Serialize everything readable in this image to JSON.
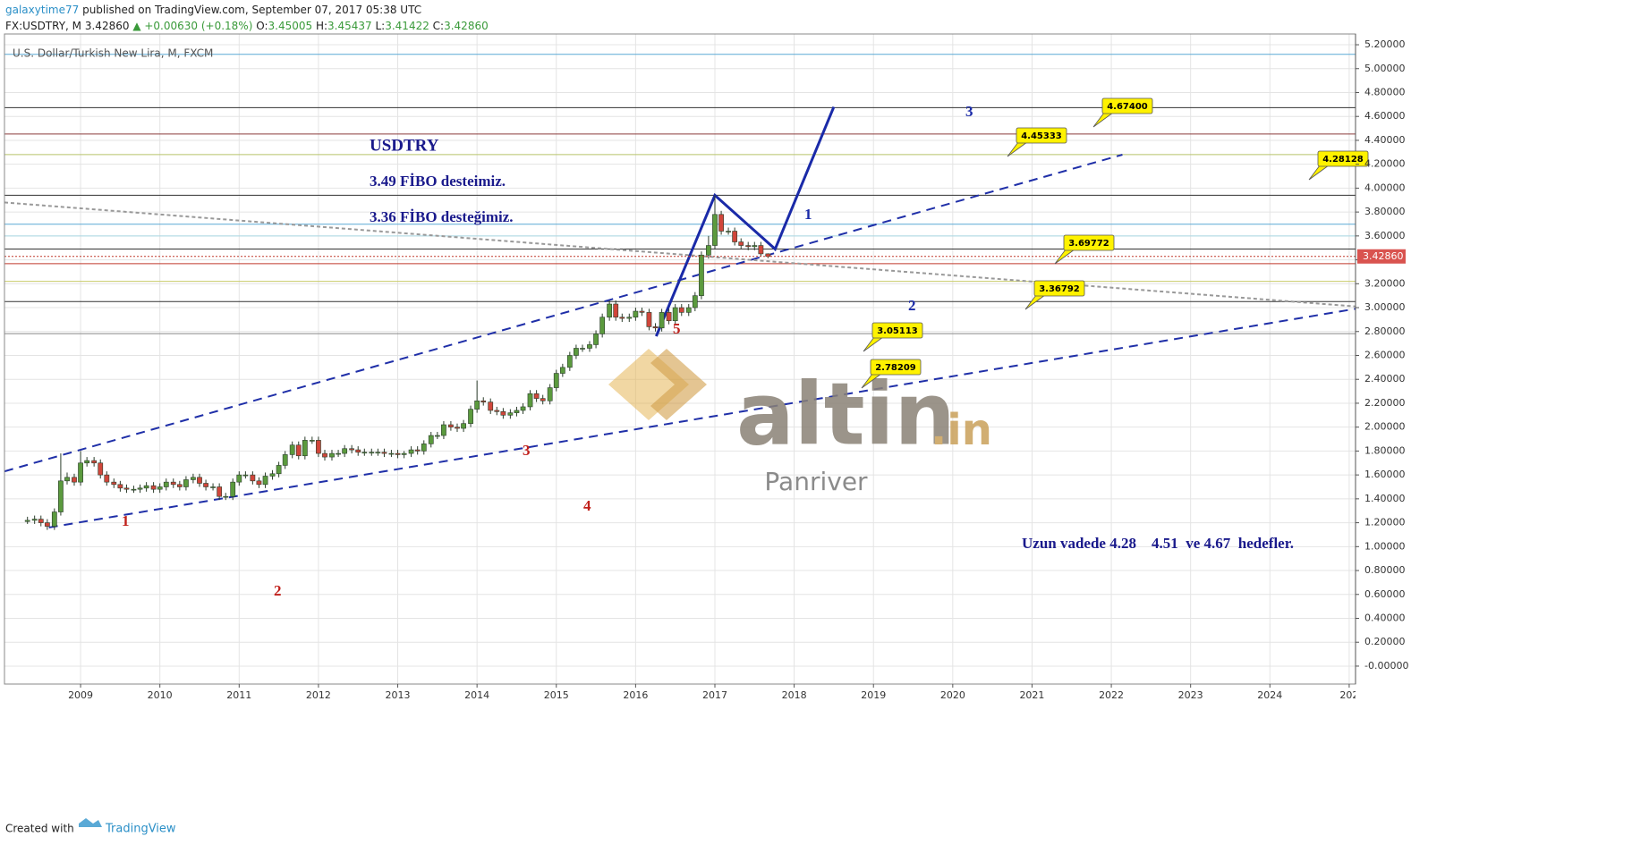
{
  "header": {
    "author": "galaxytime77",
    "published": "published on TradingView.com, September 07, 2017 05:38 UTC",
    "symbol": "FX:USDTRY, M",
    "last": "3.42860",
    "change": "▲ +0.00630 (+0.18%)",
    "open_label": "O:",
    "open": "3.45005",
    "high_label": "H:",
    "high": "3.45437",
    "low_label": "L:",
    "low": "3.41422",
    "close_label": "C:",
    "close": "3.42860"
  },
  "chart_data": {
    "type": "candlestick",
    "title": "U.S. Dollar/Turkish New Lira, M, FXCM",
    "up_color": "#5b9a3e",
    "down_color": "#d0463b",
    "grid": true,
    "x": [
      2008.33,
      2008.42,
      2008.5,
      2008.58,
      2008.67,
      2008.75,
      2008.83,
      2008.92,
      2009,
      2009.08,
      2009.17,
      2009.25,
      2009.33,
      2009.42,
      2009.5,
      2009.58,
      2009.67,
      2009.75,
      2009.83,
      2009.92,
      2010,
      2010.08,
      2010.17,
      2010.25,
      2010.33,
      2010.42,
      2010.5,
      2010.58,
      2010.67,
      2010.75,
      2010.83,
      2010.92,
      2011,
      2011.08,
      2011.17,
      2011.25,
      2011.33,
      2011.42,
      2011.5,
      2011.58,
      2011.67,
      2011.75,
      2011.83,
      2011.92,
      2012,
      2012.08,
      2012.17,
      2012.25,
      2012.33,
      2012.42,
      2012.5,
      2012.58,
      2012.67,
      2012.75,
      2012.83,
      2012.92,
      2013,
      2013.08,
      2013.17,
      2013.25,
      2013.33,
      2013.42,
      2013.5,
      2013.58,
      2013.67,
      2013.75,
      2013.83,
      2013.92,
      2014,
      2014.08,
      2014.17,
      2014.25,
      2014.33,
      2014.42,
      2014.5,
      2014.58,
      2014.67,
      2014.75,
      2014.83,
      2014.92,
      2015,
      2015.08,
      2015.17,
      2015.25,
      2015.33,
      2015.42,
      2015.5,
      2015.58,
      2015.67,
      2015.75,
      2015.83,
      2015.92,
      2016,
      2016.08,
      2016.17,
      2016.25,
      2016.33,
      2016.42,
      2016.5,
      2016.58,
      2016.67,
      2016.75,
      2016.83,
      2016.92,
      2017,
      2017.08,
      2017.17,
      2017.25,
      2017.33,
      2017.42,
      2017.5,
      2017.58,
      2017.67
    ],
    "open": [
      1.21,
      1.22,
      1.23,
      1.2,
      1.17,
      1.29,
      1.55,
      1.58,
      1.54,
      1.7,
      1.72,
      1.7,
      1.6,
      1.54,
      1.52,
      1.49,
      1.48,
      1.48,
      1.49,
      1.51,
      1.48,
      1.5,
      1.54,
      1.52,
      1.5,
      1.56,
      1.58,
      1.53,
      1.5,
      1.5,
      1.42,
      1.42,
      1.54,
      1.6,
      1.6,
      1.55,
      1.52,
      1.59,
      1.61,
      1.68,
      1.77,
      1.85,
      1.76,
      1.89,
      1.89,
      1.78,
      1.75,
      1.78,
      1.78,
      1.82,
      1.81,
      1.79,
      1.79,
      1.79,
      1.79,
      1.78,
      1.78,
      1.77,
      1.78,
      1.81,
      1.8,
      1.86,
      1.93,
      1.93,
      2.02,
      2.0,
      1.99,
      2.03,
      2.15,
      2.22,
      2.21,
      2.14,
      2.13,
      2.1,
      2.12,
      2.14,
      2.17,
      2.28,
      2.24,
      2.22,
      2.33,
      2.45,
      2.5,
      2.6,
      2.66,
      2.66,
      2.69,
      2.78,
      2.92,
      3.03,
      2.92,
      2.91,
      2.92,
      2.97,
      2.96,
      2.84,
      2.83,
      2.96,
      2.89,
      3.0,
      2.96,
      3.0,
      3.1,
      3.44,
      3.52,
      3.78,
      3.64,
      3.64,
      3.55,
      3.52,
      3.51,
      3.52,
      3.45005
    ],
    "high": [
      1.25,
      1.26,
      1.26,
      1.23,
      1.32,
      1.78,
      1.62,
      1.61,
      1.8,
      1.75,
      1.75,
      1.73,
      1.63,
      1.57,
      1.55,
      1.52,
      1.51,
      1.52,
      1.54,
      1.54,
      1.53,
      1.57,
      1.57,
      1.55,
      1.59,
      1.61,
      1.61,
      1.56,
      1.53,
      1.53,
      1.45,
      1.57,
      1.63,
      1.63,
      1.63,
      1.58,
      1.62,
      1.64,
      1.71,
      1.8,
      1.88,
      1.88,
      1.92,
      1.92,
      1.92,
      1.81,
      1.81,
      1.81,
      1.85,
      1.85,
      1.84,
      1.82,
      1.82,
      1.82,
      1.82,
      1.81,
      1.81,
      1.8,
      1.84,
      1.84,
      1.89,
      1.96,
      1.96,
      2.05,
      2.05,
      2.03,
      2.06,
      2.18,
      2.39,
      2.25,
      2.24,
      2.17,
      2.16,
      2.15,
      2.17,
      2.2,
      2.31,
      2.31,
      2.27,
      2.36,
      2.48,
      2.53,
      2.63,
      2.69,
      2.69,
      2.72,
      2.81,
      2.95,
      3.06,
      3.06,
      2.95,
      2.95,
      3.0,
      3.0,
      2.99,
      2.87,
      2.99,
      2.99,
      3.03,
      3.03,
      3.03,
      3.13,
      3.47,
      3.6,
      3.94,
      3.81,
      3.67,
      3.67,
      3.58,
      3.55,
      3.55,
      3.55,
      3.45437
    ],
    "low": [
      1.19,
      1.19,
      1.17,
      1.14,
      1.14,
      1.26,
      1.52,
      1.51,
      1.51,
      1.67,
      1.67,
      1.57,
      1.51,
      1.49,
      1.46,
      1.45,
      1.45,
      1.45,
      1.46,
      1.45,
      1.45,
      1.47,
      1.49,
      1.47,
      1.47,
      1.53,
      1.5,
      1.47,
      1.47,
      1.39,
      1.39,
      1.39,
      1.51,
      1.57,
      1.52,
      1.49,
      1.49,
      1.56,
      1.58,
      1.65,
      1.74,
      1.73,
      1.73,
      1.86,
      1.75,
      1.72,
      1.72,
      1.75,
      1.75,
      1.78,
      1.76,
      1.76,
      1.76,
      1.76,
      1.75,
      1.75,
      1.74,
      1.74,
      1.75,
      1.77,
      1.77,
      1.83,
      1.9,
      1.9,
      1.97,
      1.96,
      1.96,
      2.0,
      2.12,
      2.18,
      2.11,
      2.1,
      2.07,
      2.07,
      2.09,
      2.11,
      2.14,
      2.21,
      2.19,
      2.19,
      2.3,
      2.42,
      2.47,
      2.57,
      2.63,
      2.63,
      2.66,
      2.75,
      2.89,
      2.89,
      2.88,
      2.88,
      2.89,
      2.93,
      2.81,
      2.8,
      2.8,
      2.86,
      2.86,
      2.93,
      2.93,
      2.97,
      3.07,
      3.41,
      3.49,
      3.61,
      3.61,
      3.52,
      3.49,
      3.48,
      3.48,
      3.43,
      3.41422
    ],
    "close": [
      1.22,
      1.23,
      1.2,
      1.17,
      1.29,
      1.55,
      1.58,
      1.54,
      1.7,
      1.72,
      1.7,
      1.6,
      1.54,
      1.52,
      1.49,
      1.48,
      1.48,
      1.49,
      1.51,
      1.48,
      1.5,
      1.54,
      1.52,
      1.5,
      1.56,
      1.58,
      1.53,
      1.5,
      1.5,
      1.42,
      1.42,
      1.54,
      1.6,
      1.6,
      1.55,
      1.52,
      1.59,
      1.61,
      1.68,
      1.77,
      1.85,
      1.76,
      1.89,
      1.89,
      1.78,
      1.75,
      1.78,
      1.78,
      1.82,
      1.81,
      1.79,
      1.79,
      1.79,
      1.79,
      1.78,
      1.78,
      1.77,
      1.78,
      1.81,
      1.8,
      1.86,
      1.93,
      1.93,
      2.02,
      2.0,
      1.99,
      2.03,
      2.15,
      2.22,
      2.21,
      2.14,
      2.13,
      2.1,
      2.12,
      2.14,
      2.17,
      2.28,
      2.24,
      2.22,
      2.33,
      2.45,
      2.5,
      2.6,
      2.66,
      2.66,
      2.69,
      2.78,
      2.92,
      3.03,
      2.92,
      2.91,
      2.92,
      2.97,
      2.96,
      2.84,
      2.83,
      2.96,
      2.89,
      3.0,
      2.96,
      3.0,
      3.1,
      3.44,
      3.52,
      3.78,
      3.64,
      3.64,
      3.55,
      3.52,
      3.51,
      3.52,
      3.45,
      3.4286
    ],
    "xlim": [
      2008.04,
      2025.08
    ],
    "ylim": [
      -0.15,
      5.29
    ],
    "xticks": [
      2009,
      2010,
      2011,
      2012,
      2013,
      2014,
      2015,
      2016,
      2017,
      2018,
      2019,
      2020,
      2021,
      2022,
      2023,
      2024,
      {
        "value": 2025,
        "label": "202"
      }
    ],
    "yticks": [
      {
        "value": 5.2,
        "label": "5.20000"
      },
      {
        "value": 5.0,
        "label": "5.00000"
      },
      {
        "value": 4.8,
        "label": "4.80000"
      },
      {
        "value": 4.6,
        "label": "4.60000"
      },
      {
        "value": 4.4,
        "label": "4.40000"
      },
      {
        "value": 4.2,
        "label": "4.20000"
      },
      {
        "value": 4.0,
        "label": "4.00000"
      },
      {
        "value": 3.8,
        "label": "3.80000"
      },
      {
        "value": 3.6,
        "label": "3.60000"
      },
      {
        "value": 3.4,
        "label": "3.40000"
      },
      {
        "value": 3.2,
        "label": "3.20000"
      },
      {
        "value": 3.0,
        "label": "3.00000"
      },
      {
        "value": 2.8,
        "label": "2.80000"
      },
      {
        "value": 2.6,
        "label": "2.60000"
      },
      {
        "value": 2.4,
        "label": "2.40000"
      },
      {
        "value": 2.2,
        "label": "2.20000"
      },
      {
        "value": 2.0,
        "label": "2.00000"
      },
      {
        "value": 1.8,
        "label": "1.80000"
      },
      {
        "value": 1.6,
        "label": "1.60000"
      },
      {
        "value": 1.4,
        "label": "1.40000"
      },
      {
        "value": 1.2,
        "label": "1.20000"
      },
      {
        "value": 1.0,
        "label": "1.00000"
      },
      {
        "value": 0.8,
        "label": "0.80000"
      },
      {
        "value": 0.6,
        "label": "0.60000"
      },
      {
        "value": 0.4,
        "label": "0.40000"
      },
      {
        "value": 0.2,
        "label": "0.20000"
      },
      {
        "value": 0,
        "label": "-0.00000"
      }
    ],
    "last_price_label": "3.42860",
    "hlines": [
      {
        "value": 5.12,
        "color": "#5aa9d6"
      },
      {
        "value": 4.674,
        "color": "#333333"
      },
      {
        "value": 4.453,
        "color": "#8b3a3a"
      },
      {
        "value": 4.281,
        "color": "#b8c46a"
      },
      {
        "value": 3.94,
        "color": "#333333"
      },
      {
        "value": 3.698,
        "color": "#5aa9d6"
      },
      {
        "value": 3.6,
        "color": "#a8d8e4"
      },
      {
        "value": 3.49,
        "color": "#333333"
      },
      {
        "value": 3.368,
        "color": "#c0392b"
      },
      {
        "value": 3.22,
        "color": "#c8cc6a"
      },
      {
        "value": 3.051,
        "color": "#333333"
      },
      {
        "value": 2.782,
        "color": "#888888"
      }
    ],
    "trendlines": [
      {
        "color": "#1f2fa8",
        "dash": "10 7",
        "x": [
          2008.04,
          2022.14
        ],
        "y": [
          1.63,
          4.28
        ]
      },
      {
        "color": "#1f2fa8",
        "dash": "10 7",
        "x": [
          2008.6,
          2025.08
        ],
        "y": [
          1.16,
          2.99
        ]
      },
      {
        "color": "#999999",
        "dash": "4 3",
        "x": [
          2008.04,
          2025.08
        ],
        "y": [
          3.88,
          3.01
        ]
      },
      {
        "color": "#1a2aa8",
        "dash": "none",
        "x": [
          2016.26,
          2017.0,
          2017.76,
          2018.5
        ],
        "y": [
          2.76,
          3.94,
          3.49,
          4.68
        ]
      }
    ]
  },
  "annotations": {
    "symbol": "USDTRY",
    "fibo1": "3.49 FİBO desteimiz.",
    "fibo2": "3.36 FİBO desteğimiz.",
    "targets": "Uzun vadede 4.28    4.51  ve 4.67  hedefler.",
    "red_waves": [
      "1",
      "2",
      "3",
      "4",
      "5"
    ],
    "blue_waves": [
      "1",
      "2",
      "3"
    ],
    "callouts": [
      "4.67400",
      "4.45333",
      "4.28128",
      "3.69772",
      "3.36792",
      "3.05113",
      "2.78209"
    ]
  },
  "watermark": {
    "brand": "altin",
    "suffix": ".in",
    "sub": "Panriver"
  },
  "footer": {
    "created": "Created with",
    "brand": "TradingView"
  }
}
